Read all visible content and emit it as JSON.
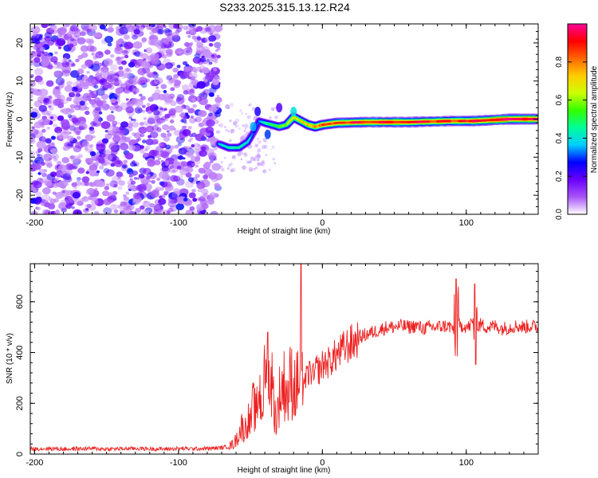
{
  "figure": {
    "title": "S233.2025.315.13.12.R24"
  },
  "chart_data": [
    {
      "type": "heatmap",
      "title": "S233.2025.315.13.12.R24",
      "xlabel": "Height of straight line (km)",
      "ylabel": "Frequency (Hz)",
      "xlim": [
        -203,
        150
      ],
      "ylim": [
        -25,
        25
      ],
      "xticks": [
        -200,
        -100,
        0,
        100
      ],
      "xtick_labels": [
        "-200",
        "-100",
        "0",
        "100"
      ],
      "yticks": [
        -20,
        -10,
        0,
        10,
        20
      ],
      "ytick_labels": [
        "-20",
        "-10",
        "0",
        "10",
        "20"
      ],
      "colorbar": {
        "label": "Normalized spectral amplitude",
        "range": [
          0,
          1
        ],
        "ticks": [
          0.0,
          0.2,
          0.4,
          0.6,
          0.8
        ],
        "tick_labels": [
          "0.0",
          "0.2",
          "0.4",
          "0.6",
          "0.8"
        ],
        "colors": [
          "#ffffff",
          "#a855f7",
          "#6a00ff",
          "#0000ff",
          "#00ccff",
          "#00ff99",
          "#33ff00",
          "#ccff00",
          "#ffcc00",
          "#ff6600",
          "#ff0000",
          "#ff0099"
        ]
      },
      "noise_region": {
        "x": [
          -203,
          -72
        ],
        "amplitude": [
          0.0,
          0.12
        ]
      },
      "ridge": [
        {
          "x": -72,
          "y": -6.5,
          "a": 0.35
        },
        {
          "x": -65,
          "y": -7.5,
          "a": 0.45
        },
        {
          "x": -58,
          "y": -7.5,
          "a": 0.45
        },
        {
          "x": -52,
          "y": -6.0,
          "a": 0.4
        },
        {
          "x": -47,
          "y": -3.0,
          "a": 0.25
        },
        {
          "x": -44,
          "y": -0.5,
          "a": 0.3
        },
        {
          "x": -40,
          "y": -1.0,
          "a": 0.45
        },
        {
          "x": -35,
          "y": -1.5,
          "a": 0.5
        },
        {
          "x": -30,
          "y": -2.0,
          "a": 0.55
        },
        {
          "x": -25,
          "y": -1.5,
          "a": 0.6
        },
        {
          "x": -20,
          "y": 0.5,
          "a": 0.7
        },
        {
          "x": -15,
          "y": -0.5,
          "a": 0.7
        },
        {
          "x": -10,
          "y": -1.5,
          "a": 0.75
        },
        {
          "x": -5,
          "y": -2.0,
          "a": 0.8
        },
        {
          "x": 0,
          "y": -1.5,
          "a": 0.85
        },
        {
          "x": 10,
          "y": -1.0,
          "a": 0.9
        },
        {
          "x": 30,
          "y": -0.8,
          "a": 0.95
        },
        {
          "x": 60,
          "y": -0.8,
          "a": 0.95
        },
        {
          "x": 90,
          "y": -0.5,
          "a": 0.9
        },
        {
          "x": 105,
          "y": -0.5,
          "a": 0.95
        },
        {
          "x": 130,
          "y": 0.0,
          "a": 1.0
        },
        {
          "x": 150,
          "y": 0.0,
          "a": 1.0
        }
      ]
    },
    {
      "type": "line",
      "xlabel": "Height of straight line (km)",
      "ylabel": "SNR (10 * v/v)",
      "xlim": [
        -203,
        150
      ],
      "ylim": [
        0,
        750
      ],
      "xticks": [
        -200,
        -100,
        0,
        100
      ],
      "xtick_labels": [
        "-200",
        "-100",
        "0",
        "100"
      ],
      "yticks": [
        0,
        200,
        400,
        600
      ],
      "ytick_labels": [
        "0",
        "200",
        "400",
        "600"
      ],
      "color": "#ee2222",
      "series": [
        {
          "x": [
            -203,
            -190,
            -180,
            -170,
            -160,
            -150,
            -140,
            -130,
            -120,
            -110,
            -100,
            -90,
            -80,
            -70,
            -65,
            -62,
            -60,
            -58,
            -56,
            -54,
            -52,
            -50,
            -48,
            -46,
            -44,
            -42,
            -40,
            -38,
            -36,
            -34,
            -32,
            -30,
            -28,
            -26,
            -24,
            -22,
            -20,
            -18,
            -16,
            -14,
            -12,
            -10,
            -8,
            -6,
            -4,
            -2,
            0,
            2,
            4,
            6,
            8,
            10,
            14,
            18,
            22,
            26,
            30,
            35,
            40,
            45,
            50,
            55,
            60,
            65,
            70,
            75,
            80,
            85,
            90,
            92,
            94,
            96,
            98,
            100,
            102,
            104,
            106,
            108,
            110,
            115,
            120,
            125,
            130,
            135,
            140,
            145,
            150
          ],
          "y": [
            20,
            22,
            20,
            21,
            22,
            20,
            21,
            22,
            21,
            20,
            22,
            21,
            22,
            25,
            30,
            40,
            55,
            80,
            110,
            90,
            140,
            120,
            200,
            150,
            260,
            180,
            300,
            250,
            330,
            220,
            120,
            230,
            260,
            280,
            220,
            300,
            270,
            260,
            320,
            300,
            290,
            310,
            330,
            300,
            340,
            330,
            350,
            360,
            360,
            370,
            380,
            390,
            410,
            430,
            440,
            460,
            470,
            480,
            490,
            500,
            500,
            505,
            500,
            505,
            495,
            500,
            500,
            505,
            500,
            480,
            520,
            500,
            510,
            500,
            500,
            520,
            490,
            500,
            510,
            500,
            505,
            495,
            500,
            505,
            500,
            505,
            500
          ]
        }
      ],
      "spikes": [
        {
          "x": -38,
          "y": 480
        },
        {
          "x": -15,
          "y": 750
        },
        {
          "x": 93,
          "y": 690
        },
        {
          "x": 106,
          "y": 670
        }
      ]
    }
  ]
}
